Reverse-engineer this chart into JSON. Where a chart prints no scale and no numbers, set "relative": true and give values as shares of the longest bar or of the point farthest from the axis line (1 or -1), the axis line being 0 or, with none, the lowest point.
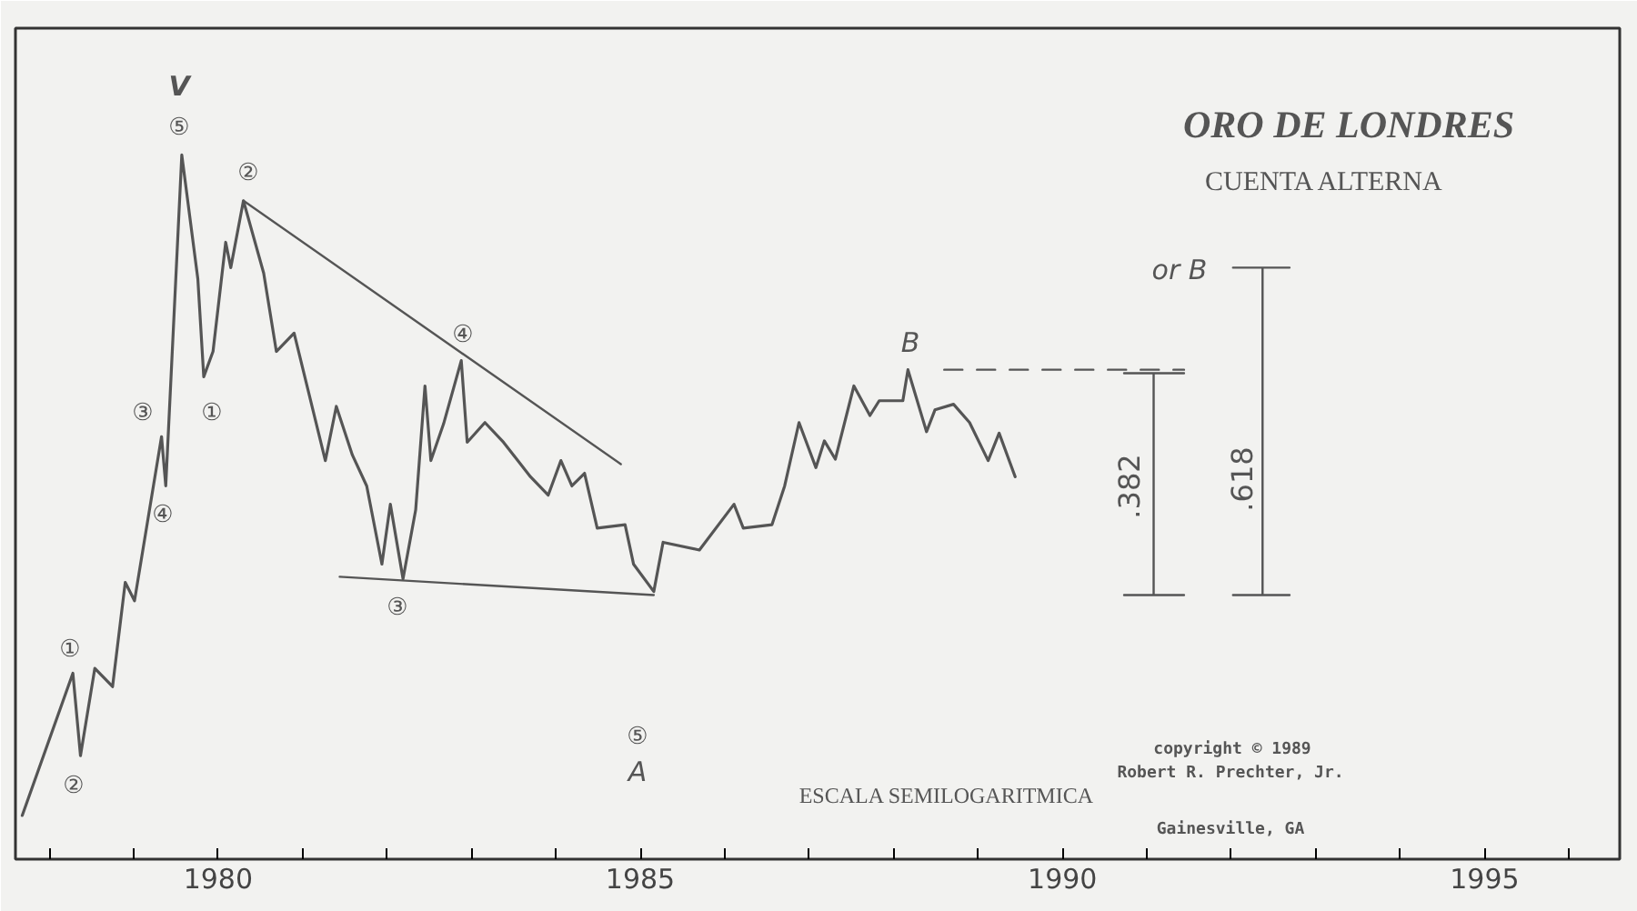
{
  "chart_data": {
    "type": "line",
    "title": "ORO DE LONDRES",
    "subtitle": "CUENTA ALTERNA",
    "relative": true,
    "grid": false,
    "marker": "none",
    "line_style": "solid",
    "xlim": [
      1977.6,
      1996.6
    ],
    "xticks": [
      {
        "value": 1978,
        "label": null
      },
      {
        "value": 1979,
        "label": null
      },
      1980,
      {
        "value": 1981,
        "label": null
      },
      {
        "value": 1982,
        "label": null
      },
      {
        "value": 1983,
        "label": null
      },
      {
        "value": 1984,
        "label": null
      },
      1985,
      {
        "value": 1986,
        "label": null
      },
      {
        "value": 1987,
        "label": null
      },
      {
        "value": 1988,
        "label": null
      },
      {
        "value": 1989,
        "label": null
      },
      1990,
      {
        "value": 1991,
        "label": null
      },
      {
        "value": 1992,
        "label": null
      },
      {
        "value": 1993,
        "label": null
      },
      {
        "value": 1994,
        "label": null
      },
      1995,
      {
        "value": 1996,
        "label": null
      }
    ],
    "series": [
      {
        "color": "#555555",
        "x": [
          1977.68,
          1978.28,
          1978.37,
          1978.54,
          1978.75,
          1978.9,
          1979.01,
          1979.33,
          1979.38,
          1979.57,
          1979.76,
          1979.83,
          1979.94,
          1980.09,
          1980.15,
          1980.3,
          1980.54,
          1980.69,
          1980.9,
          1981.27,
          1981.4,
          1981.59,
          1981.76,
          1981.94,
          1982.04,
          1982.19,
          1982.34,
          1982.45,
          1982.52,
          1982.67,
          1982.88,
          1982.95,
          1983.16,
          1983.38,
          1983.7,
          1983.91,
          1984.06,
          1984.19,
          1984.34,
          1984.49,
          1984.82,
          1984.92,
          1985.16,
          1985.27,
          1985.7,
          1986.11,
          1986.22,
          1986.56,
          1986.71,
          1986.88,
          1987.08,
          1987.18,
          1987.31,
          1987.53,
          1987.72,
          1987.83,
          1988.11,
          1988.17,
          1988.39,
          1988.49,
          1988.71,
          1988.9,
          1989.12,
          1989.25,
          1989.44
        ],
        "values": [
          0.062,
          0.264,
          0.147,
          0.271,
          0.245,
          0.393,
          0.367,
          0.6,
          0.53,
          1.0,
          0.824,
          0.685,
          0.721,
          0.876,
          0.84,
          0.935,
          0.832,
          0.721,
          0.747,
          0.566,
          0.643,
          0.574,
          0.53,
          0.419,
          0.504,
          0.398,
          0.496,
          0.672,
          0.566,
          0.618,
          0.708,
          0.592,
          0.62,
          0.592,
          0.543,
          0.517,
          0.566,
          0.53,
          0.548,
          0.47,
          0.475,
          0.419,
          0.38,
          0.45,
          0.439,
          0.504,
          0.47,
          0.475,
          0.53,
          0.62,
          0.556,
          0.594,
          0.568,
          0.672,
          0.63,
          0.651,
          0.651,
          0.695,
          0.607,
          0.638,
          0.646,
          0.62,
          0.566,
          0.605,
          0.543
        ]
      },
      {
        "color": "#555555",
        "x": [
          1980.3,
          1984.77
        ],
        "values": [
          0.935,
          0.561
        ]
      },
      {
        "color": "#555555",
        "x": [
          1981.44,
          1985.16
        ],
        "values": [
          0.401,
          0.375
        ]
      },
      {
        "color": "#555555",
        "line_style": "dashed",
        "x": [
          1988.6,
          1991.44
        ],
        "values": [
          0.695,
          0.695
        ]
      },
      {
        "color": "#555555",
        "x": [
          1990.73,
          1991.44,
          1991.08,
          1991.08,
          1990.73,
          1991.44
        ],
        "values": [
          0.375,
          0.375,
          0.375,
          0.69,
          0.69,
          0.69
        ]
      },
      {
        "color": "#555555",
        "x": [
          1992.02,
          1992.69,
          1992.37,
          1992.37,
          1992.02,
          1992.69
        ],
        "values": [
          0.375,
          0.375,
          0.375,
          0.84,
          0.84,
          0.84
        ]
      }
    ],
    "annotations": [
      "V",
      "⑤",
      "②",
      "③",
      "①",
      "④",
      "①",
      "②",
      "④",
      "③",
      "⑤",
      "A",
      "B",
      "or B",
      ".382",
      ".618",
      "ESCALA SEMILOGARITMICA",
      "copyright © 1989",
      "Robert R. Prechter, Jr.",
      "Gainesville, GA"
    ]
  }
}
